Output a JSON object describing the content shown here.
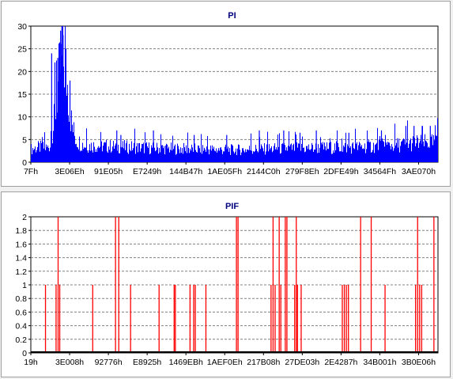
{
  "chart_data": [
    {
      "type": "bar",
      "title": "PI",
      "color": "#0000ff",
      "ylim": [
        0,
        30
      ],
      "y_ticks": [
        "0",
        "5",
        "10",
        "15",
        "20",
        "25",
        "30"
      ],
      "x_tick_labels": [
        "7Fh",
        "3E06Eh",
        "91E05h",
        "E7249h",
        "144B47h",
        "1AE05Fh",
        "2144C0h",
        "279F8Eh",
        "2DFE49h",
        "34564Fh",
        "3AE070h"
      ],
      "grid": "horizontal dashed",
      "legend": "none",
      "profile": [
        [
          0,
          3.5
        ],
        [
          0.02,
          4
        ],
        [
          0.04,
          3.8
        ],
        [
          0.05,
          5
        ],
        [
          0.06,
          14
        ],
        [
          0.068,
          22
        ],
        [
          0.075,
          26
        ],
        [
          0.082,
          27
        ],
        [
          0.09,
          20
        ],
        [
          0.1,
          10
        ],
        [
          0.11,
          6
        ],
        [
          0.13,
          4.5
        ],
        [
          0.2,
          4.2
        ],
        [
          0.3,
          3.8
        ],
        [
          0.4,
          3.5
        ],
        [
          0.5,
          3.3
        ],
        [
          0.6,
          3.6
        ],
        [
          0.7,
          3.8
        ],
        [
          0.8,
          4
        ],
        [
          0.9,
          4.6
        ],
        [
          0.95,
          5.2
        ],
        [
          1,
          5.2
        ]
      ],
      "peaks": [
        [
          0.05,
          24
        ],
        [
          0.058,
          22
        ],
        [
          0.065,
          23
        ],
        [
          0.072,
          29
        ],
        [
          0.075,
          30
        ],
        [
          0.078,
          28
        ],
        [
          0.085,
          25
        ],
        [
          0.095,
          18
        ],
        [
          0.21,
          7
        ],
        [
          0.22,
          6
        ],
        [
          0.3,
          7
        ],
        [
          0.4,
          6
        ],
        [
          0.48,
          6
        ],
        [
          0.56,
          7
        ],
        [
          0.62,
          7
        ],
        [
          0.66,
          6.5
        ],
        [
          0.7,
          7
        ],
        [
          0.78,
          6.5
        ],
        [
          0.86,
          7
        ],
        [
          0.92,
          8
        ],
        [
          0.94,
          8
        ],
        [
          0.96,
          8
        ],
        [
          0.98,
          8
        ]
      ]
    },
    {
      "type": "bar",
      "title": "PIF",
      "color": "#ff0000",
      "ylim": [
        0,
        2
      ],
      "y_ticks": [
        "0",
        "0.2",
        "0.4",
        "0.6",
        "0.8",
        "1",
        "1.2",
        "1.4",
        "1.6",
        "1.8",
        "2"
      ],
      "x_tick_labels": [
        "19h",
        "3E008h",
        "92776h",
        "E8925h",
        "1469EBh",
        "1AEF0Eh",
        "217B08h",
        "27DE03h",
        "2E4287h",
        "34B001h",
        "3B0E06h"
      ],
      "grid": "horizontal dashed",
      "legend": "none",
      "spikes": [
        [
          0.036,
          1
        ],
        [
          0.062,
          1
        ],
        [
          0.067,
          2
        ],
        [
          0.071,
          1
        ],
        [
          0.152,
          1
        ],
        [
          0.208,
          2
        ],
        [
          0.216,
          2
        ],
        [
          0.245,
          1
        ],
        [
          0.315,
          1
        ],
        [
          0.352,
          1
        ],
        [
          0.355,
          1
        ],
        [
          0.391,
          1
        ],
        [
          0.4,
          1
        ],
        [
          0.404,
          1
        ],
        [
          0.43,
          1
        ],
        [
          0.505,
          2
        ],
        [
          0.509,
          2
        ],
        [
          0.59,
          1
        ],
        [
          0.595,
          2
        ],
        [
          0.6,
          1
        ],
        [
          0.61,
          2
        ],
        [
          0.614,
          1
        ],
        [
          0.625,
          2
        ],
        [
          0.629,
          2
        ],
        [
          0.648,
          1
        ],
        [
          0.652,
          2
        ],
        [
          0.655,
          1
        ],
        [
          0.664,
          1
        ],
        [
          0.765,
          1
        ],
        [
          0.77,
          1
        ],
        [
          0.775,
          1
        ],
        [
          0.78,
          1
        ],
        [
          0.81,
          2
        ],
        [
          0.836,
          2
        ],
        [
          0.87,
          1
        ],
        [
          0.945,
          1
        ],
        [
          0.95,
          2
        ],
        [
          0.955,
          1
        ],
        [
          0.96,
          1
        ],
        [
          0.99,
          2
        ]
      ]
    }
  ]
}
